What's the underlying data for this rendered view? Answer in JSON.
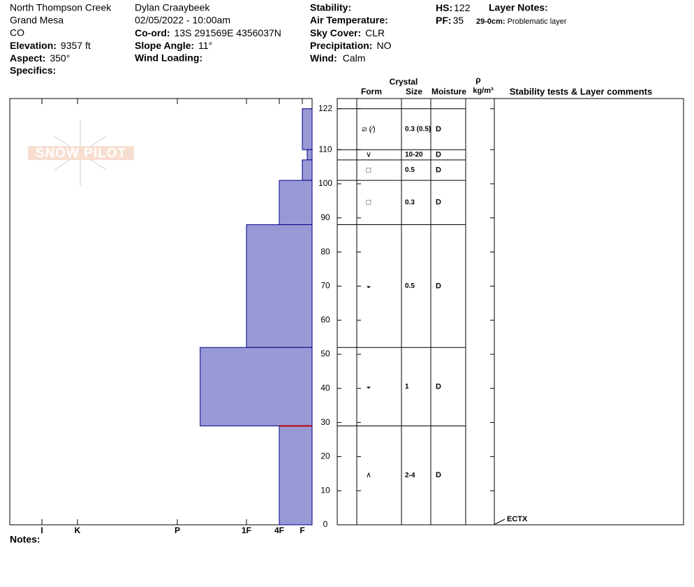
{
  "header": {
    "location": "North Thompson Creek",
    "range": "Grand Mesa",
    "state": "CO",
    "elevation": {
      "label": "Elevation:",
      "value": "9357 ft"
    },
    "aspect": {
      "label": "Aspect:",
      "value": "350°"
    },
    "specifics": {
      "label": "Specifics:"
    },
    "observer": "Dylan Craaybeek",
    "datetime": "02/05/2022 - 10:00am",
    "coord": {
      "label": "Co-ord:",
      "value": "13S 291569E 4356037N"
    },
    "slope": {
      "label": "Slope Angle:",
      "value": "11°"
    },
    "wind_loading": {
      "label": "Wind Loading:"
    },
    "stability": {
      "label": "Stability:"
    },
    "air_temp": {
      "label": "Air Temperature:"
    },
    "sky": {
      "label": "Sky Cover:",
      "value": "CLR"
    },
    "precip": {
      "label": "Precipitation:",
      "value": "NO"
    },
    "wind": {
      "label": "Wind:",
      "value": "Calm"
    },
    "hs": {
      "label": "HS:",
      "value": "122"
    },
    "pf": {
      "label": "PF:",
      "value": "35"
    },
    "layer_notes": {
      "label": "Layer Notes:",
      "range": "29-0cm:",
      "text": "Problematic layer"
    }
  },
  "logo": "SNOW PILOT",
  "columns": {
    "crystal": "Crystal",
    "form": "Form",
    "size": "Size",
    "moisture": "Moisture",
    "rho": "ρ",
    "density_unit": "kg/m³",
    "comments": "Stability tests & Layer comments"
  },
  "notes": "Notes:",
  "chart_data": {
    "type": "snow-profile",
    "ylim": [
      0,
      125
    ],
    "yticks": [
      0,
      10,
      20,
      30,
      40,
      50,
      60,
      70,
      80,
      90,
      100,
      110,
      122
    ],
    "xlim": [
      6.7,
      0
    ],
    "xticks": [
      {
        "value": 6,
        "label": "I"
      },
      {
        "value": 5,
        "label": "K"
      },
      {
        "value": 4,
        "label": "P"
      },
      {
        "value": 3,
        "label": "1F"
      },
      {
        "value": 2,
        "label": "4F"
      },
      {
        "value": 1,
        "label": "F"
      }
    ],
    "color": "#9999d6",
    "layers": [
      {
        "top": 122,
        "bottom": 110,
        "hardness": 1,
        "form": "⧄ (⁄)",
        "size": "0.3 (0.5)",
        "moisture": "D"
      },
      {
        "top": 110,
        "bottom": 107,
        "hardness": 0.5,
        "form": "∨",
        "size": "10-20",
        "moisture": "D"
      },
      {
        "top": 107,
        "bottom": 101,
        "hardness": 1,
        "form": "□",
        "size": "0.5",
        "moisture": "D"
      },
      {
        "top": 101,
        "bottom": 88,
        "hardness": 2,
        "form": "□",
        "size": "0.3",
        "moisture": "D"
      },
      {
        "top": 88,
        "bottom": 52,
        "hardness": 3,
        "form": "◒",
        "size": "0.5",
        "moisture": "D"
      },
      {
        "top": 52,
        "bottom": 29,
        "hardness": 3.67,
        "form": "◒",
        "size": "1",
        "moisture": "D"
      },
      {
        "top": 29,
        "bottom": 0,
        "hardness": 2,
        "form": "∧",
        "size": "2-4",
        "moisture": "D"
      }
    ],
    "problem_layer": 29,
    "tests": [
      {
        "text": "ECTX",
        "height": 0
      }
    ]
  }
}
